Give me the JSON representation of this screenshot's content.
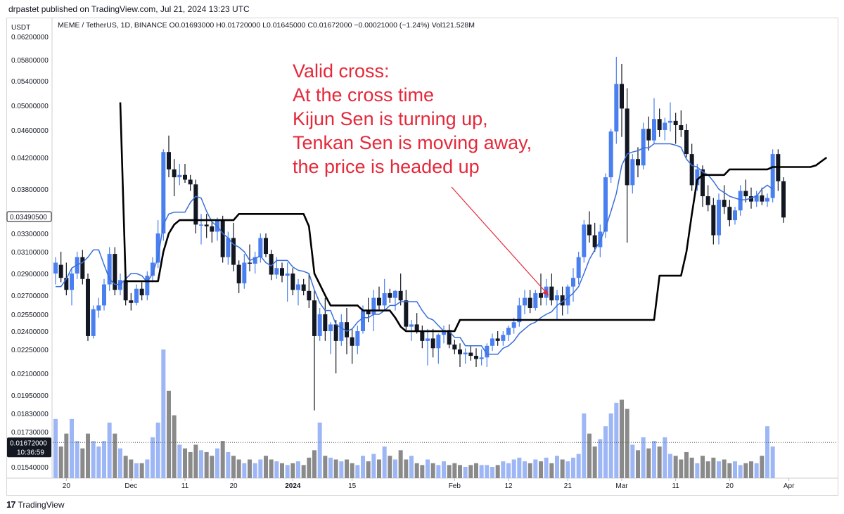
{
  "header": {
    "published": "drpastet published on TradingView.com, Jul 21, 2024 13:23 UTC"
  },
  "legend": {
    "symbol": "MEME / TetherUS, 1D, BINANCE",
    "open_label": "O",
    "open": "0.01693000",
    "high_label": "H",
    "high": "0.01720000",
    "low_label": "L",
    "low": "0.01645000",
    "close_label": "C",
    "close": "0.01672000",
    "change": "−0.00021000 (−1.24%)",
    "vol_label": "Vol",
    "vol": "121.528M"
  },
  "currency": "USDT",
  "annotation": "Valid cross:\nAt the cross time\nKijun Sen is turning up,\nTenkan Sen is moving away,\nthe price is headed up",
  "footer": {
    "brand": "TradingView"
  },
  "colors": {
    "up": "#4a7ff0",
    "down": "#131722",
    "tenkan": "#3a6fd8",
    "kijun": "#000000",
    "vol_up": "#9db6f5",
    "vol_down": "#8a8a8a",
    "annotation": "#e5283a"
  },
  "chart_data": {
    "type": "candlestick",
    "xlabel": "",
    "ylabel": "",
    "y_tick_labels": [
      "0.06200000",
      "0.05800000",
      "0.05400000",
      "0.05000000",
      "0.04600000",
      "0.04200000",
      "0.03800000",
      "0.03300000",
      "0.03100000",
      "0.02900000",
      "0.02700000",
      "0.02550000",
      "0.02400000",
      "0.02250000",
      "0.02100000",
      "0.01950000",
      "0.01830000",
      "0.01730000",
      "0.01540000"
    ],
    "x_tick_labels": [
      "20",
      "Dec",
      "11",
      "20",
      "2024",
      "15",
      "Feb",
      "12",
      "21",
      "Mar",
      "11",
      "20",
      "Apr"
    ],
    "price_badges": [
      {
        "name": "crosshair-price",
        "value": 0.0349,
        "label": "0.03490500"
      },
      {
        "name": "last-price",
        "value": 0.01672,
        "label": "0.01672000",
        "countdown": "10:36:59"
      }
    ],
    "candles": [
      [
        0.029,
        0.0305,
        0.028,
        0.03
      ],
      [
        0.0298,
        0.031,
        0.0282,
        0.0286
      ],
      [
        0.0286,
        0.03,
        0.027,
        0.0275
      ],
      [
        0.0275,
        0.0295,
        0.0262,
        0.029
      ],
      [
        0.029,
        0.031,
        0.0285,
        0.0305
      ],
      [
        0.0305,
        0.0312,
        0.028,
        0.0285
      ],
      [
        0.0285,
        0.029,
        0.0232,
        0.0236
      ],
      [
        0.0236,
        0.0262,
        0.0234,
        0.0259
      ],
      [
        0.0258,
        0.0268,
        0.0252,
        0.0262
      ],
      [
        0.0262,
        0.0285,
        0.0258,
        0.028
      ],
      [
        0.028,
        0.0315,
        0.0274,
        0.0308
      ],
      [
        0.0308,
        0.0315,
        0.027,
        0.0275
      ],
      [
        0.0275,
        0.029,
        0.027,
        0.0284
      ],
      [
        0.0284,
        0.029,
        0.0262,
        0.0266
      ],
      [
        0.0266,
        0.0272,
        0.0258,
        0.0264
      ],
      [
        0.0264,
        0.028,
        0.0262,
        0.0276
      ],
      [
        0.0276,
        0.0282,
        0.0266,
        0.027
      ],
      [
        0.027,
        0.0292,
        0.0266,
        0.0288
      ],
      [
        0.0288,
        0.0305,
        0.0282,
        0.03
      ],
      [
        0.03,
        0.0345,
        0.0295,
        0.033
      ],
      [
        0.033,
        0.0432,
        0.0322,
        0.0428
      ],
      [
        0.0428,
        0.0452,
        0.0395,
        0.0405
      ],
      [
        0.0405,
        0.0418,
        0.0372,
        0.0395
      ],
      [
        0.0395,
        0.0412,
        0.0385,
        0.0398
      ],
      [
        0.0398,
        0.0412,
        0.0388,
        0.0392
      ],
      [
        0.0392,
        0.0398,
        0.0378,
        0.0386
      ],
      [
        0.0386,
        0.0392,
        0.033,
        0.034
      ],
      [
        0.034,
        0.0352,
        0.0318,
        0.034
      ],
      [
        0.034,
        0.0352,
        0.0325,
        0.0338
      ],
      [
        0.0338,
        0.0345,
        0.032,
        0.0332
      ],
      [
        0.0332,
        0.0348,
        0.0322,
        0.0345
      ],
      [
        0.0345,
        0.035,
        0.03,
        0.0305
      ],
      [
        0.0305,
        0.0332,
        0.0298,
        0.0325
      ],
      [
        0.0325,
        0.0342,
        0.0292,
        0.0298
      ],
      [
        0.0298,
        0.0302,
        0.0272,
        0.0281
      ],
      [
        0.0281,
        0.0308,
        0.0276,
        0.03
      ],
      [
        0.03,
        0.0318,
        0.0292,
        0.0299
      ],
      [
        0.0299,
        0.031,
        0.029,
        0.0305
      ],
      [
        0.0305,
        0.033,
        0.03,
        0.0325
      ],
      [
        0.0325,
        0.033,
        0.0305,
        0.0308
      ],
      [
        0.0308,
        0.0312,
        0.0284,
        0.0289
      ],
      [
        0.0289,
        0.0305,
        0.0285,
        0.0295
      ],
      [
        0.0295,
        0.03,
        0.0282,
        0.0288
      ],
      [
        0.0288,
        0.03,
        0.0265,
        0.029
      ],
      [
        0.029,
        0.0295,
        0.027,
        0.0275
      ],
      [
        0.0275,
        0.0285,
        0.0262,
        0.028
      ],
      [
        0.028,
        0.0285,
        0.027,
        0.0274
      ],
      [
        0.0274,
        0.029,
        0.026,
        0.0266
      ],
      [
        0.0266,
        0.0275,
        0.0185,
        0.0236
      ],
      [
        0.0236,
        0.026,
        0.0232,
        0.0255
      ],
      [
        0.0255,
        0.0268,
        0.0232,
        0.024
      ],
      [
        0.024,
        0.0248,
        0.0222,
        0.0246
      ],
      [
        0.0246,
        0.025,
        0.021,
        0.0232
      ],
      [
        0.0232,
        0.0255,
        0.0228,
        0.0248
      ],
      [
        0.0248,
        0.026,
        0.0222,
        0.0235
      ],
      [
        0.0235,
        0.0242,
        0.0216,
        0.0228
      ],
      [
        0.0228,
        0.0245,
        0.0222,
        0.024
      ],
      [
        0.024,
        0.0262,
        0.0238,
        0.0258
      ],
      [
        0.0258,
        0.0268,
        0.0248,
        0.0255
      ],
      [
        0.0255,
        0.0275,
        0.024,
        0.0268
      ],
      [
        0.0268,
        0.0278,
        0.0258,
        0.0262
      ],
      [
        0.0262,
        0.0285,
        0.0258,
        0.0272
      ],
      [
        0.0272,
        0.0276,
        0.0264,
        0.0268
      ],
      [
        0.0268,
        0.0275,
        0.0258,
        0.0274
      ],
      [
        0.0274,
        0.029,
        0.0262,
        0.0266
      ],
      [
        0.0266,
        0.0275,
        0.024,
        0.0244
      ],
      [
        0.0244,
        0.025,
        0.0232,
        0.0246
      ],
      [
        0.0246,
        0.0256,
        0.0238,
        0.024
      ],
      [
        0.024,
        0.0245,
        0.0226,
        0.0232
      ],
      [
        0.0232,
        0.0242,
        0.0215,
        0.0234
      ],
      [
        0.0234,
        0.0242,
        0.022,
        0.0226
      ],
      [
        0.0226,
        0.0238,
        0.0216,
        0.0237
      ],
      [
        0.0237,
        0.0245,
        0.023,
        0.0241
      ],
      [
        0.0241,
        0.0246,
        0.0226,
        0.0229
      ],
      [
        0.0229,
        0.0233,
        0.0222,
        0.0225
      ],
      [
        0.0225,
        0.023,
        0.0214,
        0.0222
      ],
      [
        0.0222,
        0.0226,
        0.0216,
        0.0223
      ],
      [
        0.0223,
        0.0228,
        0.0218,
        0.0221
      ],
      [
        0.0221,
        0.0226,
        0.0214,
        0.0219
      ],
      [
        0.0219,
        0.0225,
        0.0215,
        0.022
      ],
      [
        0.022,
        0.023,
        0.0214,
        0.0228
      ],
      [
        0.0228,
        0.0238,
        0.0224,
        0.0234
      ],
      [
        0.0234,
        0.024,
        0.0228,
        0.0232
      ],
      [
        0.0232,
        0.024,
        0.0228,
        0.0237
      ],
      [
        0.0237,
        0.0245,
        0.0232,
        0.0243
      ],
      [
        0.0243,
        0.0252,
        0.0238,
        0.0248
      ],
      [
        0.0248,
        0.0268,
        0.0244,
        0.0262
      ],
      [
        0.0262,
        0.0275,
        0.0255,
        0.0268
      ],
      [
        0.0268,
        0.0275,
        0.0256,
        0.026
      ],
      [
        0.026,
        0.0275,
        0.0258,
        0.0272
      ],
      [
        0.0272,
        0.029,
        0.0262,
        0.0268
      ],
      [
        0.0268,
        0.0285,
        0.0262,
        0.0278
      ],
      [
        0.0278,
        0.029,
        0.0262,
        0.0266
      ],
      [
        0.0266,
        0.0275,
        0.025,
        0.027
      ],
      [
        0.027,
        0.0278,
        0.0254,
        0.0262
      ],
      [
        0.0262,
        0.028,
        0.0255,
        0.0278
      ],
      [
        0.0278,
        0.0295,
        0.0265,
        0.0286
      ],
      [
        0.0286,
        0.031,
        0.028,
        0.0305
      ],
      [
        0.0305,
        0.0345,
        0.03,
        0.034
      ],
      [
        0.034,
        0.0355,
        0.032,
        0.0328
      ],
      [
        0.0328,
        0.0342,
        0.031,
        0.0315
      ],
      [
        0.0315,
        0.034,
        0.0305,
        0.0332
      ],
      [
        0.0332,
        0.04,
        0.0325,
        0.0395
      ],
      [
        0.0395,
        0.0462,
        0.0388,
        0.0458
      ],
      [
        0.0458,
        0.0585,
        0.044,
        0.0535
      ],
      [
        0.0535,
        0.0572,
        0.045,
        0.0495
      ],
      [
        0.0495,
        0.0528,
        0.032,
        0.0385
      ],
      [
        0.0385,
        0.0425,
        0.0375,
        0.0418
      ],
      [
        0.0418,
        0.0435,
        0.0395,
        0.041
      ],
      [
        0.041,
        0.0472,
        0.0405,
        0.0462
      ],
      [
        0.0462,
        0.0482,
        0.043,
        0.0445
      ],
      [
        0.0445,
        0.0512,
        0.044,
        0.0478
      ],
      [
        0.0478,
        0.0495,
        0.045,
        0.046
      ],
      [
        0.046,
        0.048,
        0.0445,
        0.0472
      ],
      [
        0.0472,
        0.0505,
        0.0458,
        0.0475
      ],
      [
        0.0475,
        0.0488,
        0.044,
        0.0468
      ],
      [
        0.0468,
        0.0492,
        0.045,
        0.046
      ],
      [
        0.046,
        0.047,
        0.042,
        0.0425
      ],
      [
        0.0425,
        0.044,
        0.0378,
        0.0385
      ],
      [
        0.0385,
        0.0412,
        0.0378,
        0.0405
      ],
      [
        0.0405,
        0.041,
        0.036,
        0.0372
      ],
      [
        0.0372,
        0.0385,
        0.0355,
        0.0362
      ],
      [
        0.0362,
        0.037,
        0.0318,
        0.0328
      ],
      [
        0.0328,
        0.0375,
        0.0318,
        0.0368
      ],
      [
        0.0368,
        0.0385,
        0.0352,
        0.036
      ],
      [
        0.036,
        0.0368,
        0.0338,
        0.0345
      ],
      [
        0.0345,
        0.036,
        0.034,
        0.0356
      ],
      [
        0.0356,
        0.0385,
        0.035,
        0.0378
      ],
      [
        0.0378,
        0.0392,
        0.0365,
        0.0372
      ],
      [
        0.0372,
        0.0382,
        0.0358,
        0.0366
      ],
      [
        0.0366,
        0.0378,
        0.036,
        0.0373
      ],
      [
        0.0373,
        0.0382,
        0.0362,
        0.0366
      ],
      [
        0.0366,
        0.0375,
        0.036,
        0.037
      ],
      [
        0.037,
        0.0432,
        0.0365,
        0.0425
      ],
      [
        0.0425,
        0.0432,
        0.0378,
        0.039
      ],
      [
        0.039,
        0.0395,
        0.0342,
        0.0348
      ]
    ],
    "volume": [
      0.018,
      0.0165,
      0.0172,
      0.018,
      0.0168,
      0.0164,
      0.0172,
      0.0168,
      0.0165,
      0.0168,
      0.0178,
      0.0172,
      0.0164,
      0.016,
      0.0158,
      0.0156,
      0.0156,
      0.0158,
      0.017,
      0.0178,
      0.0225,
      0.0198,
      0.0182,
      0.0166,
      0.0164,
      0.0162,
      0.0166,
      0.0163,
      0.0162,
      0.016,
      0.0164,
      0.0168,
      0.0162,
      0.016,
      0.0158,
      0.0156,
      0.0158,
      0.0156,
      0.0158,
      0.016,
      0.0158,
      0.0157,
      0.0156,
      0.0155,
      0.0156,
      0.0157,
      0.0155,
      0.0159,
      0.0163,
      0.0178,
      0.016,
      0.0159,
      0.0158,
      0.0157,
      0.0158,
      0.0156,
      0.0155,
      0.016,
      0.0157,
      0.0161,
      0.0158,
      0.0165,
      0.016,
      0.0158,
      0.0163,
      0.0158,
      0.016,
      0.0156,
      0.0155,
      0.0158,
      0.0156,
      0.0155,
      0.0157,
      0.0155,
      0.0156,
      0.0155,
      0.0154,
      0.0155,
      0.0156,
      0.0155,
      0.0155,
      0.0154,
      0.0155,
      0.0157,
      0.0156,
      0.0158,
      0.0159,
      0.0157,
      0.0156,
      0.0158,
      0.0157,
      0.0159,
      0.0156,
      0.016,
      0.0158,
      0.0157,
      0.0159,
      0.0161,
      0.0183,
      0.0172,
      0.0165,
      0.0169,
      0.0176,
      0.0183,
      0.019,
      0.0192,
      0.0186,
      0.0166,
      0.0163,
      0.017,
      0.0164,
      0.0168,
      0.0165,
      0.017,
      0.0161,
      0.016,
      0.0158,
      0.0162,
      0.0159,
      0.0156,
      0.016,
      0.0157,
      0.0159,
      0.0157,
      0.0158,
      0.0156,
      0.0157,
      0.0155,
      0.0156,
      0.0157,
      0.0156,
      0.016,
      0.0176,
      0.0165
    ],
    "tenkan_sen": [
      0.0278,
      0.0278,
      0.0285,
      0.0295,
      0.0298,
      0.03,
      0.0305,
      0.0312,
      0.0312,
      0.0298,
      0.0285,
      0.028,
      0.028,
      0.0285,
      0.029,
      0.029,
      0.0288,
      0.0282,
      0.029,
      0.0305,
      0.034,
      0.0352,
      0.0354,
      0.0354,
      0.0354,
      0.0365,
      0.0372,
      0.037,
      0.0355,
      0.0343,
      0.0338,
      0.033,
      0.0325,
      0.0318,
      0.0315,
      0.031,
      0.0302,
      0.0304,
      0.0306,
      0.03,
      0.0297,
      0.0302,
      0.0302,
      0.0302,
      0.0296,
      0.0293,
      0.0292,
      0.029,
      0.0275,
      0.0264,
      0.0258,
      0.0258,
      0.0246,
      0.0243,
      0.024,
      0.0242,
      0.0248,
      0.0252,
      0.0252,
      0.0255,
      0.0255,
      0.0258,
      0.0262,
      0.0262,
      0.0265,
      0.0265,
      0.0265,
      0.0265,
      0.0258,
      0.0252,
      0.025,
      0.0245,
      0.024,
      0.024,
      0.0235,
      0.0235,
      0.0228,
      0.0228,
      0.0228,
      0.0228,
      0.0222,
      0.0222,
      0.0222,
      0.0226,
      0.0228,
      0.0232,
      0.0238,
      0.0242,
      0.0246,
      0.0248,
      0.0252,
      0.0255,
      0.0257,
      0.0262,
      0.0265,
      0.0268,
      0.0272,
      0.0278,
      0.029,
      0.0303,
      0.0312,
      0.0322,
      0.0336,
      0.0355,
      0.0375,
      0.041,
      0.0425,
      0.0428,
      0.043,
      0.0434,
      0.0434,
      0.044,
      0.044,
      0.044,
      0.044,
      0.0438,
      0.0435,
      0.0418,
      0.041,
      0.0408,
      0.0402,
      0.0398,
      0.039,
      0.038,
      0.0376,
      0.0372,
      0.037,
      0.0368,
      0.0368,
      0.037,
      0.0372,
      0.038,
      0.0385,
      0.038
    ],
    "kijun_sen": [
      null,
      null,
      null,
      null,
      null,
      null,
      null,
      null,
      null,
      null,
      null,
      null,
      0.0505,
      0.0283,
      0.0283,
      0.0283,
      0.0283,
      0.0283,
      0.0283,
      0.0283,
      0.031,
      0.033,
      0.034,
      0.0345,
      0.0345,
      0.0345,
      0.0345,
      0.0345,
      0.0345,
      0.0345,
      0.0345,
      0.0345,
      0.0345,
      0.0345,
      0.0352,
      0.0352,
      0.0352,
      0.0352,
      0.0352,
      0.0352,
      0.0352,
      0.0352,
      0.0352,
      0.0352,
      0.0352,
      0.0352,
      0.0352,
      0.0338,
      0.029,
      0.028,
      0.027,
      0.0262,
      0.0262,
      0.0262,
      0.0262,
      0.0262,
      0.0262,
      0.0258,
      0.0258,
      0.0258,
      0.0258,
      0.0258,
      0.0258,
      0.0252,
      0.0244,
      0.024,
      0.024,
      0.024,
      0.024,
      0.024,
      0.024,
      0.024,
      0.024,
      0.024,
      0.024,
      0.025,
      0.025,
      0.025,
      0.025,
      0.025,
      0.025,
      0.025,
      0.025,
      0.025,
      0.025,
      0.025,
      0.025,
      0.025,
      0.025,
      0.025,
      0.025,
      0.025,
      0.025,
      0.025,
      0.025,
      0.025,
      0.025,
      0.025,
      0.025,
      0.025,
      0.025,
      0.025,
      0.025,
      0.025,
      0.025,
      0.025,
      0.025,
      0.025,
      0.025,
      0.025,
      0.025,
      0.025,
      0.0288,
      0.0288,
      0.0288,
      0.0288,
      0.0288,
      0.031,
      0.0352,
      0.0392,
      0.0398,
      0.0398,
      0.0398,
      0.0398,
      0.0398,
      0.0405,
      0.0405,
      0.0405,
      0.0405,
      0.0405,
      0.0405,
      0.0405,
      0.0405,
      0.0408,
      0.0408,
      0.0408,
      0.0408,
      0.0408,
      0.0408,
      0.0408,
      0.0408,
      0.041,
      0.0415,
      0.042
    ]
  }
}
